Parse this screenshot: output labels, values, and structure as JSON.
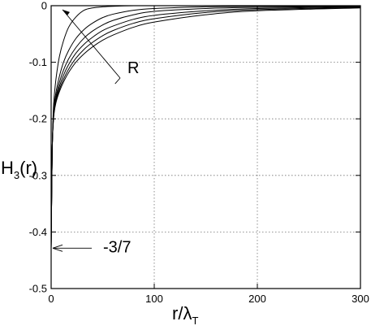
{
  "chart_data": {
    "type": "line",
    "title": "",
    "xlabel": "r/λ",
    "xlabel_subscript": "T",
    "ylabel": "H",
    "ylabel_subscript": "3",
    "ylabel_suffix": "(r)",
    "xlim": [
      0,
      300
    ],
    "ylim": [
      -0.5,
      0
    ],
    "xticks": [
      0,
      100,
      200,
      300
    ],
    "xtick_labels": [
      "0",
      "100",
      "200",
      "300"
    ],
    "yticks": [
      0,
      -0.1,
      -0.2,
      -0.3,
      -0.4,
      -0.5
    ],
    "ytick_labels": [
      "0",
      "-0.1",
      "-0.2",
      "-0.3",
      "-0.4",
      "-0.5"
    ],
    "grid": true,
    "series": [
      {
        "x": [
          0,
          1,
          2,
          3,
          5,
          8,
          12,
          17,
          24,
          32,
          40,
          50,
          60,
          80,
          100,
          150,
          200,
          300
        ],
        "y": [
          -0.4286,
          -0.26,
          -0.19,
          -0.16,
          -0.125,
          -0.09,
          -0.062,
          -0.038,
          -0.02,
          -0.008,
          -0.004,
          -0.002,
          -0.001,
          0,
          0,
          0,
          0,
          0
        ]
      },
      {
        "x": [
          0,
          1,
          2,
          3,
          5,
          8,
          12,
          17,
          24,
          32,
          40,
          50,
          60,
          80,
          100,
          150,
          200,
          300
        ],
        "y": [
          -0.4286,
          -0.26,
          -0.2,
          -0.175,
          -0.15,
          -0.125,
          -0.1,
          -0.079,
          -0.058,
          -0.042,
          -0.031,
          -0.021,
          -0.015,
          -0.008,
          -0.005,
          -0.002,
          -0.001,
          -0.0005
        ]
      },
      {
        "x": [
          0,
          1,
          2,
          3,
          5,
          8,
          12,
          17,
          24,
          32,
          40,
          50,
          60,
          80,
          100,
          150,
          200,
          300
        ],
        "y": [
          -0.4286,
          -0.26,
          -0.205,
          -0.18,
          -0.158,
          -0.136,
          -0.114,
          -0.094,
          -0.074,
          -0.057,
          -0.045,
          -0.034,
          -0.026,
          -0.016,
          -0.01,
          -0.005,
          -0.003,
          -0.001
        ]
      },
      {
        "x": [
          0,
          1,
          2,
          3,
          5,
          8,
          12,
          17,
          24,
          32,
          40,
          50,
          60,
          80,
          100,
          150,
          200,
          300
        ],
        "y": [
          -0.4286,
          -0.26,
          -0.207,
          -0.184,
          -0.163,
          -0.143,
          -0.123,
          -0.104,
          -0.084,
          -0.068,
          -0.056,
          -0.044,
          -0.036,
          -0.024,
          -0.017,
          -0.009,
          -0.005,
          -0.002
        ]
      },
      {
        "x": [
          0,
          1,
          2,
          3,
          5,
          8,
          12,
          17,
          24,
          32,
          40,
          50,
          60,
          80,
          100,
          150,
          200,
          300
        ],
        "y": [
          -0.4286,
          -0.26,
          -0.208,
          -0.186,
          -0.166,
          -0.148,
          -0.13,
          -0.112,
          -0.093,
          -0.077,
          -0.065,
          -0.053,
          -0.044,
          -0.031,
          -0.023,
          -0.012,
          -0.007,
          -0.003
        ]
      },
      {
        "x": [
          0,
          1,
          2,
          3,
          5,
          8,
          12,
          17,
          24,
          32,
          40,
          50,
          60,
          80,
          100,
          150,
          200,
          300
        ],
        "y": [
          -0.4286,
          -0.26,
          -0.209,
          -0.188,
          -0.169,
          -0.152,
          -0.135,
          -0.118,
          -0.1,
          -0.085,
          -0.073,
          -0.061,
          -0.052,
          -0.038,
          -0.029,
          -0.016,
          -0.009,
          -0.004
        ]
      }
    ],
    "annotations": [
      {
        "text": "R",
        "arrows_to": [
          [
            11,
            -0.007
          ],
          [
            62,
            -0.138
          ]
        ]
      },
      {
        "text": "-3/7",
        "value": -0.4286,
        "arrow_to": [
          0,
          -0.4286
        ]
      }
    ]
  }
}
